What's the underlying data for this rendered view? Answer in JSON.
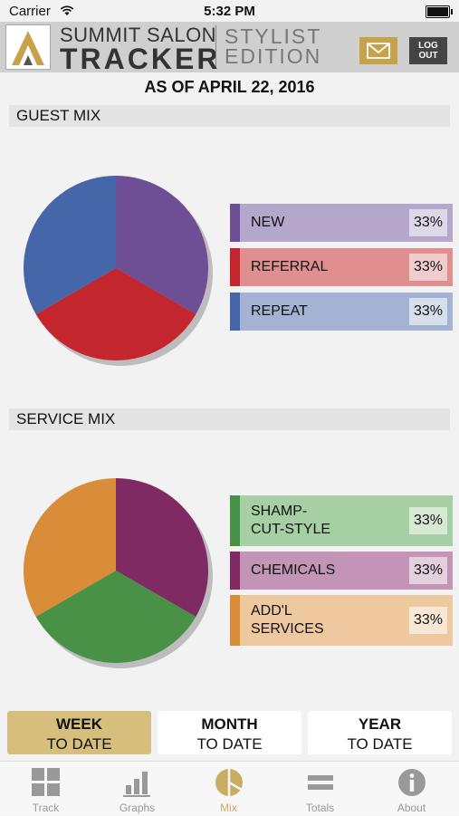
{
  "status_bar": {
    "carrier": "Carrier",
    "time": "5:32 PM"
  },
  "header": {
    "brand_top": "SUMMIT SALON",
    "brand_bottom": "TRACKER",
    "edition_line1": "STYLIST",
    "edition_line2": "EDITION",
    "logout_line1": "LOG",
    "logout_line2": "OUT"
  },
  "as_of": "AS OF APRIL 22, 2016",
  "guest_mix": {
    "title": "GUEST MIX",
    "items": [
      {
        "label": "NEW",
        "percent": "33%",
        "value": 33.33,
        "color": "#6e4e95",
        "legend_color": "#b5a7cb",
        "stripe_color": "#6e4e95"
      },
      {
        "label": "REFERRAL",
        "percent": "33%",
        "value": 33.33,
        "color": "#c4262e",
        "legend_color": "#df8f90",
        "stripe_color": "#c4262e"
      },
      {
        "label": "REPEAT",
        "percent": "33%",
        "value": 33.33,
        "color": "#4567aa",
        "legend_color": "#a4b3d3",
        "stripe_color": "#4567aa"
      }
    ]
  },
  "service_mix": {
    "title": "SERVICE MIX",
    "items": [
      {
        "label_line1": "SHAMP-",
        "label_line2": "CUT-STYLE",
        "percent": "33%",
        "value": 33.33,
        "color": "#a6cfa3",
        "pie_color": "#7f2a62",
        "stripe_color": "#4a9148"
      },
      {
        "label_line1": "CHEMICALS",
        "label_line2": "",
        "percent": "33%",
        "value": 33.33,
        "color": "#c394b6",
        "pie_color": "#4a9148",
        "stripe_color": "#7f2a62"
      },
      {
        "label_line1": "ADD'L",
        "label_line2": "SERVICES",
        "percent": "33%",
        "value": 33.33,
        "color": "#eec9a0",
        "pie_color": "#d98d38",
        "stripe_color": "#d98d38"
      }
    ]
  },
  "period_buttons": [
    {
      "line1": "WEEK",
      "line2": "TO DATE",
      "active": true
    },
    {
      "line1": "MONTH",
      "line2": "TO DATE",
      "active": false
    },
    {
      "line1": "YEAR",
      "line2": "TO DATE",
      "active": false
    }
  ],
  "tabs": [
    {
      "label": "Track",
      "icon": "grid-icon",
      "active": false
    },
    {
      "label": "Graphs",
      "icon": "bar-chart-icon",
      "active": false
    },
    {
      "label": "Mix",
      "icon": "pie-icon",
      "active": true
    },
    {
      "label": "Totals",
      "icon": "equals-icon",
      "active": false
    },
    {
      "label": "About",
      "icon": "info-icon",
      "active": false
    }
  ],
  "colors": {
    "accent": "#c9ad62",
    "active_period": "#d6bf7d",
    "mail_button": "#c7a24a",
    "logout_button": "#444444"
  }
}
